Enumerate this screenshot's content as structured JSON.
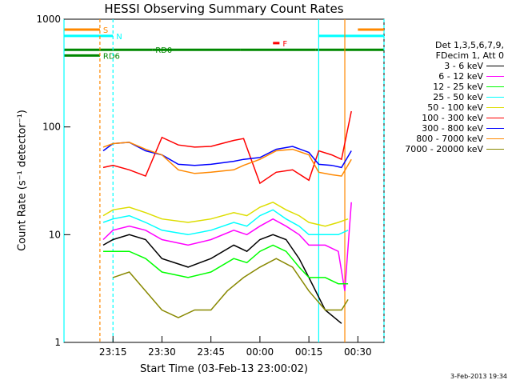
{
  "title": "HESSI Observing Summary Count Rates",
  "stamp": "3-Feb-2013 19:34",
  "chart_data": {
    "type": "line",
    "title": "HESSI Observing Summary Count Rates",
    "xlabel": "Start Time (03-Feb-13 23:00:02)",
    "ylabel": "Count Rate (s⁻¹ detector⁻¹)",
    "yscale": "log",
    "xlim": [
      0,
      98
    ],
    "ylim": [
      1,
      1000
    ],
    "x_units": "minutes after 03-Feb-13 23:00:02",
    "xticks": [
      {
        "x": 15,
        "label": "23:15"
      },
      {
        "x": 30,
        "label": "23:30"
      },
      {
        "x": 45,
        "label": "23:45"
      },
      {
        "x": 60,
        "label": "00:00"
      },
      {
        "x": 75,
        "label": "00:15"
      },
      {
        "x": 90,
        "label": "00:30"
      }
    ],
    "yticks": [
      {
        "y": 1,
        "label": "1"
      },
      {
        "y": 10,
        "label": "10"
      },
      {
        "y": 100,
        "label": "100"
      },
      {
        "y": 1000,
        "label": "1000"
      }
    ],
    "legend_header": [
      "Det 1,3,5,6,7,9,",
      "FDecim 1, Att 0"
    ],
    "legend_position": "right",
    "series": [
      {
        "name": "3 - 6 keV",
        "color": "#000000",
        "points": [
          [
            12,
            8
          ],
          [
            15,
            9
          ],
          [
            20,
            10
          ],
          [
            25,
            9
          ],
          [
            30,
            6
          ],
          [
            38,
            5
          ],
          [
            45,
            6
          ],
          [
            52,
            8
          ],
          [
            56,
            7
          ],
          [
            60,
            9
          ],
          [
            64,
            10
          ],
          [
            68,
            9
          ],
          [
            72,
            6
          ],
          [
            75,
            4
          ],
          [
            80,
            2
          ],
          [
            85,
            1.5
          ]
        ]
      },
      {
        "name": "6 - 12 keV",
        "color": "#ff00ff",
        "points": [
          [
            12,
            9
          ],
          [
            15,
            11
          ],
          [
            20,
            12
          ],
          [
            25,
            11
          ],
          [
            30,
            9
          ],
          [
            38,
            8
          ],
          [
            45,
            9
          ],
          [
            52,
            11
          ],
          [
            56,
            10
          ],
          [
            60,
            12
          ],
          [
            64,
            14
          ],
          [
            68,
            12
          ],
          [
            72,
            10
          ],
          [
            75,
            8
          ],
          [
            80,
            8
          ],
          [
            84,
            7
          ],
          [
            86,
            3
          ],
          [
            88,
            20
          ]
        ]
      },
      {
        "name": "12 - 25 keV",
        "color": "#00ff00",
        "points": [
          [
            12,
            7
          ],
          [
            15,
            7
          ],
          [
            20,
            7
          ],
          [
            25,
            6
          ],
          [
            30,
            4.5
          ],
          [
            38,
            4
          ],
          [
            45,
            4.5
          ],
          [
            52,
            6
          ],
          [
            56,
            5.5
          ],
          [
            60,
            7
          ],
          [
            64,
            8
          ],
          [
            68,
            7
          ],
          [
            72,
            5
          ],
          [
            75,
            4
          ],
          [
            80,
            4
          ],
          [
            84,
            3.5
          ],
          [
            87,
            3.5
          ]
        ]
      },
      {
        "name": "25 - 50 keV",
        "color": "#00ffff",
        "points": [
          [
            12,
            13
          ],
          [
            15,
            14
          ],
          [
            20,
            15
          ],
          [
            25,
            13
          ],
          [
            30,
            11
          ],
          [
            38,
            10
          ],
          [
            45,
            11
          ],
          [
            52,
            13
          ],
          [
            56,
            12
          ],
          [
            60,
            15
          ],
          [
            64,
            17
          ],
          [
            68,
            14
          ],
          [
            72,
            12
          ],
          [
            75,
            10
          ],
          [
            80,
            10
          ],
          [
            84,
            10
          ],
          [
            87,
            11
          ]
        ]
      },
      {
        "name": "50 - 100 keV",
        "color": "#dddd00",
        "points": [
          [
            12,
            15
          ],
          [
            15,
            17
          ],
          [
            20,
            18
          ],
          [
            25,
            16
          ],
          [
            30,
            14
          ],
          [
            38,
            13
          ],
          [
            45,
            14
          ],
          [
            52,
            16
          ],
          [
            56,
            15
          ],
          [
            60,
            18
          ],
          [
            64,
            20
          ],
          [
            68,
            17
          ],
          [
            72,
            15
          ],
          [
            75,
            13
          ],
          [
            80,
            12
          ],
          [
            84,
            13
          ],
          [
            87,
            14
          ]
        ]
      },
      {
        "name": "100 - 300 keV",
        "color": "#ff0000",
        "points": [
          [
            12,
            42
          ],
          [
            15,
            44
          ],
          [
            20,
            40
          ],
          [
            25,
            35
          ],
          [
            30,
            80
          ],
          [
            35,
            68
          ],
          [
            40,
            65
          ],
          [
            45,
            66
          ],
          [
            52,
            75
          ],
          [
            55,
            78
          ],
          [
            60,
            30
          ],
          [
            65,
            38
          ],
          [
            70,
            40
          ],
          [
            75,
            32
          ],
          [
            78,
            60
          ],
          [
            82,
            55
          ],
          [
            85,
            50
          ],
          [
            88,
            140
          ]
        ]
      },
      {
        "name": "300 - 800 keV",
        "color": "#0000ff",
        "points": [
          [
            12,
            60
          ],
          [
            15,
            70
          ],
          [
            20,
            72
          ],
          [
            25,
            60
          ],
          [
            30,
            55
          ],
          [
            35,
            45
          ],
          [
            40,
            44
          ],
          [
            45,
            45
          ],
          [
            52,
            48
          ],
          [
            55,
            50
          ],
          [
            60,
            52
          ],
          [
            65,
            62
          ],
          [
            70,
            66
          ],
          [
            75,
            58
          ],
          [
            78,
            45
          ],
          [
            82,
            44
          ],
          [
            85,
            42
          ],
          [
            88,
            60
          ]
        ]
      },
      {
        "name": "800 - 7000 keV",
        "color": "#ff8800",
        "points": [
          [
            12,
            65
          ],
          [
            15,
            70
          ],
          [
            20,
            72
          ],
          [
            25,
            62
          ],
          [
            30,
            55
          ],
          [
            35,
            40
          ],
          [
            40,
            37
          ],
          [
            45,
            38
          ],
          [
            52,
            40
          ],
          [
            55,
            44
          ],
          [
            60,
            50
          ],
          [
            65,
            60
          ],
          [
            70,
            62
          ],
          [
            75,
            55
          ],
          [
            78,
            38
          ],
          [
            82,
            36
          ],
          [
            85,
            35
          ],
          [
            88,
            50
          ]
        ]
      },
      {
        "name": "7000 - 20000 keV",
        "color": "#888800",
        "points": [
          [
            15,
            4
          ],
          [
            20,
            4.5
          ],
          [
            25,
            3
          ],
          [
            30,
            2
          ],
          [
            35,
            1.7
          ],
          [
            40,
            2
          ],
          [
            45,
            2
          ],
          [
            50,
            3
          ],
          [
            55,
            4
          ],
          [
            60,
            5
          ],
          [
            65,
            6
          ],
          [
            70,
            5
          ],
          [
            75,
            3
          ],
          [
            80,
            2
          ],
          [
            85,
            2
          ],
          [
            87,
            2.5
          ]
        ]
      }
    ],
    "flag_lines": [
      {
        "label": "S",
        "color": "#ff8800",
        "y": 800,
        "segments": [
          [
            0,
            11
          ],
          [
            90,
            98
          ]
        ]
      },
      {
        "label": "N",
        "color": "#00ffff",
        "y": 700,
        "segments": [
          [
            0,
            15
          ],
          [
            78,
            98
          ]
        ]
      },
      {
        "label": "RD0",
        "color": "#008800",
        "y": 520,
        "segments": [
          [
            0,
            27
          ],
          [
            27,
            54
          ],
          [
            54,
            77
          ],
          [
            77,
            98
          ]
        ]
      },
      {
        "label": "RD6",
        "color": "#008800",
        "y": 460,
        "segments": [
          [
            0,
            11
          ]
        ]
      },
      {
        "label": "F",
        "color": "#ff0000",
        "y": 600,
        "segments": [
          [
            64,
            66
          ]
        ]
      }
    ],
    "event_lines": [
      {
        "x": 11,
        "color": "#ff8800",
        "style": "dashed"
      },
      {
        "x": 15,
        "color": "#00ffff",
        "style": "dashed"
      },
      {
        "x": 78,
        "color": "#00ffff",
        "style": "solid"
      },
      {
        "x": 86,
        "color": "#ff8800",
        "style": "solid"
      },
      {
        "x": 0,
        "color": "#00ffff",
        "style": "solid"
      },
      {
        "x": 98,
        "color": "#00ffff",
        "style": "dashed"
      }
    ]
  }
}
